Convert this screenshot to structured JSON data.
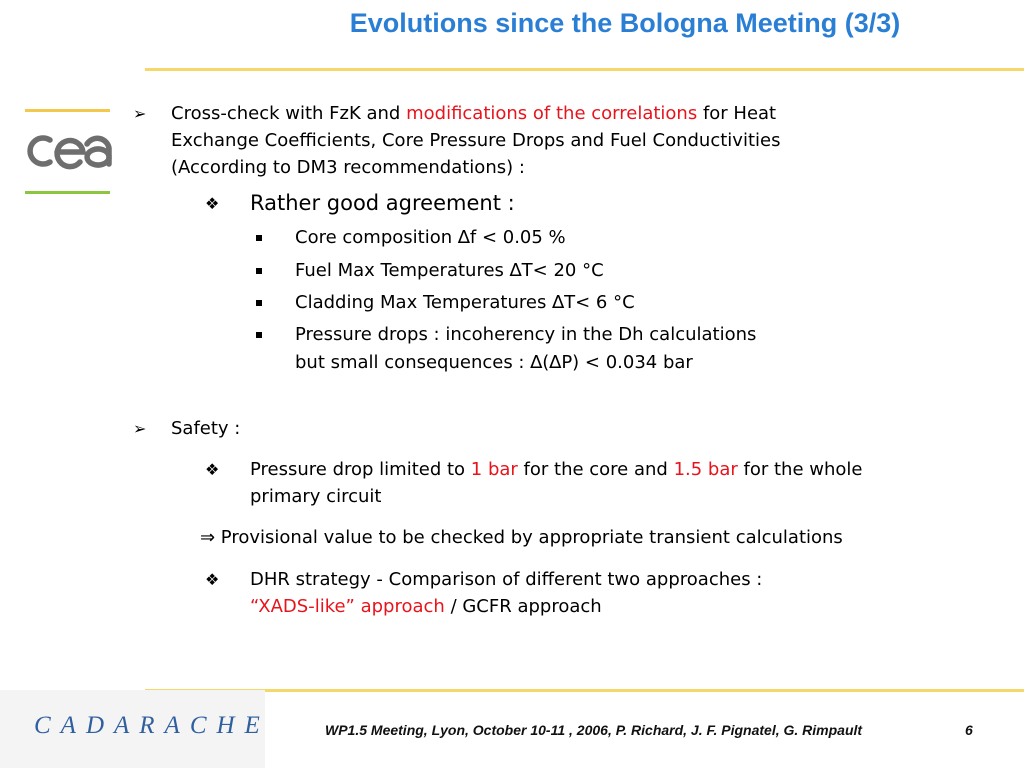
{
  "title": "Evolutions since the Bologna Meeting (3/3)",
  "bullet1": {
    "a": "Cross-check with FzK and ",
    "b": "modifications of the correlations",
    "c": "  for Heat",
    "line2": "Exchange Coefficients,  Core Pressure Drops and Fuel Conductivities",
    "line3": "(According to DM3 recommendations) :"
  },
  "agreement": {
    "heading": "Rather good agreement :",
    "items": [
      "Core composition ∆f < 0.05 %",
      "Fuel Max Temperatures ∆T< 20 °C",
      "Cladding Max Temperatures ∆T< 6 °C",
      "Pressure drops : incoherency in the Dh calculations"
    ],
    "item4_line2": "but small consequences : ∆(∆P) < 0.034 bar"
  },
  "safety": {
    "heading": "Safety :",
    "pd_a": "Pressure drop limited to ",
    "pd_b": "1 bar",
    "pd_c": " for the core  and ",
    "pd_d": "1.5 bar",
    "pd_e": " for the whole",
    "pd_line2": "primary circuit",
    "implies": "⇒ Provisional value to be checked by appropriate transient calculations",
    "dhr_line1": "DHR strategy - Comparison of different two approaches :",
    "dhr_red": "“XADS-like” approach",
    "dhr_rest": " / GCFR approach"
  },
  "logos": {
    "cea": "cea",
    "cadarache": "CADARACHE"
  },
  "footer": {
    "text": "WP1.5 Meeting, Lyon, October 10-11 , 2006, P. Richard, J. F. Pignatel, G. Rimpault",
    "page": "6"
  },
  "colors": {
    "title": "#2a7fd4",
    "highlight": "#e8141c",
    "rule": "#f5d86a",
    "cadarache": "#2f5f9e"
  }
}
